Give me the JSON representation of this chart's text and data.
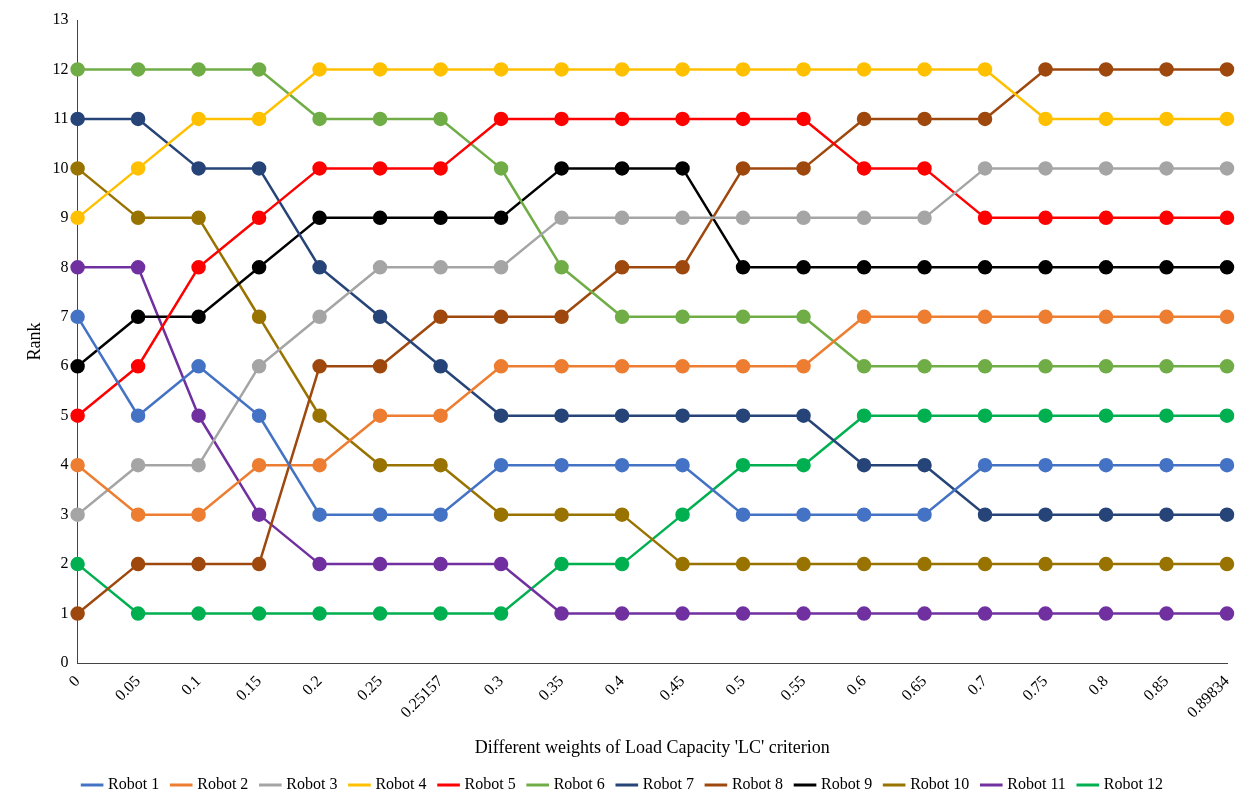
{
  "chart_data": {
    "type": "line",
    "xlabel": "Different weights of Load Capacity 'LC' criterion",
    "ylabel": "Rank",
    "categories": [
      "0",
      "0.05",
      "0.1",
      "0.15",
      "0.2",
      "0.25",
      "0.25157",
      "0.3",
      "0.35",
      "0.4",
      "0.45",
      "0.5",
      "0.55",
      "0.6",
      "0.65",
      "0.7",
      "0.75",
      "0.8",
      "0.85",
      "0.89834"
    ],
    "ylim": [
      0,
      13
    ],
    "yticks": [
      0,
      1,
      2,
      3,
      4,
      5,
      6,
      7,
      8,
      9,
      10,
      11,
      12,
      13
    ],
    "grid": false,
    "legend": "bottom",
    "marker": "circle",
    "line_style": "solid",
    "series": [
      {
        "name": "Robot 1",
        "color": "#4472c4",
        "values": [
          7,
          5,
          6,
          5,
          3,
          3,
          3,
          4,
          4,
          4,
          4,
          3,
          3,
          3,
          3,
          4,
          4,
          4,
          4,
          4
        ]
      },
      {
        "name": "Robot 2",
        "color": "#ed7d31",
        "values": [
          4,
          3,
          3,
          4,
          4,
          5,
          5,
          6,
          6,
          6,
          6,
          6,
          6,
          7,
          7,
          7,
          7,
          7,
          7,
          7
        ]
      },
      {
        "name": "Robot 3",
        "color": "#a5a5a5",
        "values": [
          3,
          4,
          4,
          6,
          7,
          8,
          8,
          8,
          9,
          9,
          9,
          9,
          9,
          9,
          9,
          10,
          10,
          10,
          10,
          10
        ]
      },
      {
        "name": "Robot 4",
        "color": "#ffc000",
        "values": [
          9,
          10,
          11,
          11,
          12,
          12,
          12,
          12,
          12,
          12,
          12,
          12,
          12,
          12,
          12,
          12,
          11,
          11,
          11,
          11
        ]
      },
      {
        "name": "Robot 5",
        "color": "#ff0000",
        "values": [
          5,
          6,
          8,
          9,
          10,
          10,
          10,
          11,
          11,
          11,
          11,
          11,
          11,
          10,
          10,
          9,
          9,
          9,
          9,
          9
        ]
      },
      {
        "name": "Robot 6",
        "color": "#70ad47",
        "values": [
          12,
          12,
          12,
          12,
          11,
          11,
          11,
          10,
          8,
          7,
          7,
          7,
          7,
          6,
          6,
          6,
          6,
          6,
          6,
          6
        ]
      },
      {
        "name": "Robot 7",
        "color": "#264478",
        "values": [
          11,
          11,
          10,
          10,
          8,
          7,
          6,
          5,
          5,
          5,
          5,
          5,
          5,
          4,
          4,
          3,
          3,
          3,
          3,
          3
        ]
      },
      {
        "name": "Robot 8",
        "color": "#9e480e",
        "values": [
          1,
          2,
          2,
          2,
          6,
          6,
          7,
          7,
          7,
          8,
          8,
          10,
          10,
          11,
          11,
          11,
          12,
          12,
          12,
          12
        ]
      },
      {
        "name": "Robot 9",
        "color": "#000000",
        "values": [
          6,
          7,
          7,
          8,
          9,
          9,
          9,
          9,
          10,
          10,
          10,
          8,
          8,
          8,
          8,
          8,
          8,
          8,
          8,
          8
        ]
      },
      {
        "name": "Robot 10",
        "color": "#997300",
        "values": [
          10,
          9,
          9,
          7,
          5,
          4,
          4,
          3,
          3,
          3,
          2,
          2,
          2,
          2,
          2,
          2,
          2,
          2,
          2,
          2
        ]
      },
      {
        "name": "Robot 11",
        "color": "#7030a0",
        "values": [
          8,
          8,
          5,
          3,
          2,
          2,
          2,
          2,
          1,
          1,
          1,
          1,
          1,
          1,
          1,
          1,
          1,
          1,
          1,
          1
        ]
      },
      {
        "name": "Robot 12",
        "color": "#00b050",
        "values": [
          2,
          1,
          1,
          1,
          1,
          1,
          1,
          1,
          2,
          2,
          3,
          4,
          4,
          5,
          5,
          5,
          5,
          5,
          5,
          5
        ]
      }
    ]
  }
}
